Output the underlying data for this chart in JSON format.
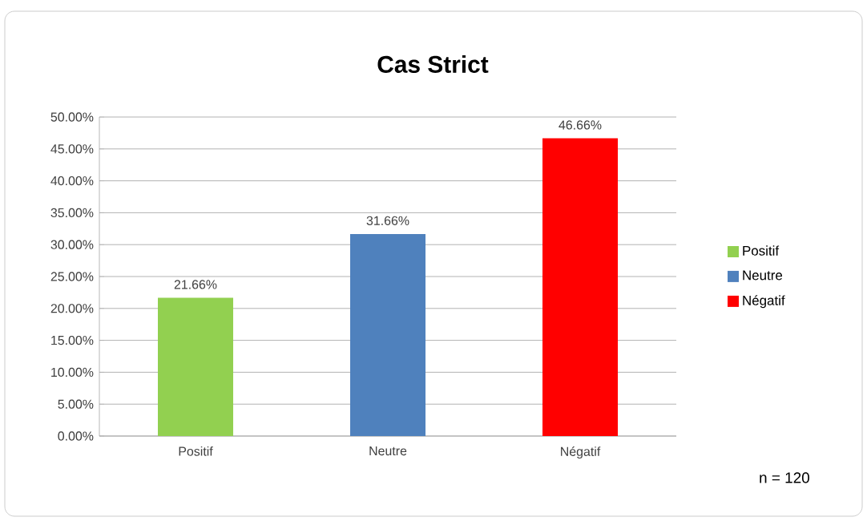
{
  "chart_data": {
    "type": "bar",
    "title": "Cas Strict",
    "categories": [
      "Positif",
      "Neutre",
      "Négatif"
    ],
    "series": [
      {
        "name": "Positif",
        "color": "#92d050",
        "values": [
          21.66,
          null,
          null
        ],
        "value_labels": [
          "21.66%",
          null,
          null
        ]
      },
      {
        "name": "Neutre",
        "color": "#4f81bd",
        "values": [
          null,
          31.66,
          null
        ],
        "value_labels": [
          null,
          "31.66%",
          null
        ]
      },
      {
        "name": "Négatif",
        "color": "#ff0000",
        "values": [
          null,
          null,
          46.66
        ],
        "value_labels": [
          null,
          null,
          "46.66%"
        ]
      }
    ],
    "ylim": [
      0,
      50
    ],
    "yticks": [
      {
        "value": 0,
        "label": "0.00%"
      },
      {
        "value": 5,
        "label": "5.00%"
      },
      {
        "value": 10,
        "label": "10.00%"
      },
      {
        "value": 15,
        "label": "15.00%"
      },
      {
        "value": 20,
        "label": "20.00%"
      },
      {
        "value": 25,
        "label": "25.00%"
      },
      {
        "value": 30,
        "label": "30.00%"
      },
      {
        "value": 35,
        "label": "35.00%"
      },
      {
        "value": 40,
        "label": "40.00%"
      },
      {
        "value": 45,
        "label": "45.00%"
      },
      {
        "value": 50,
        "label": "50.00%"
      }
    ],
    "grid": true,
    "legend": "right",
    "annotations": [
      "n = 120"
    ]
  }
}
